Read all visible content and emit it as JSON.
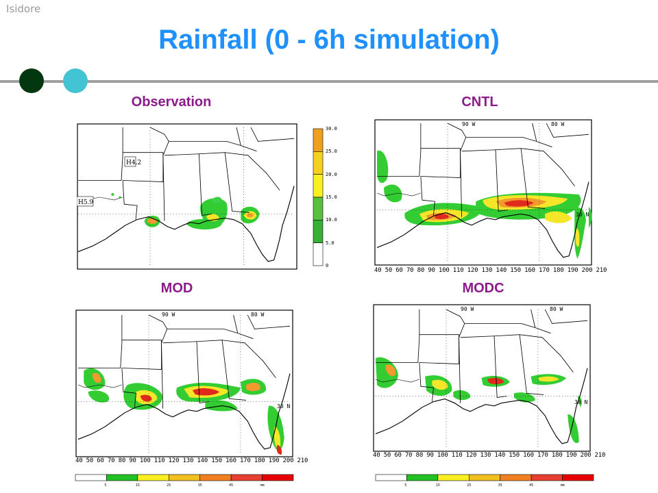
{
  "header": {
    "corner_label": "Isidore",
    "title": "Rainfall (0 - 6h simulation)"
  },
  "panels": {
    "observation": {
      "label": "Observation",
      "station_1": "H4.2",
      "station_2": "H5.9"
    },
    "cntl": {
      "label": "CNTL",
      "lon_label_1": "90 W",
      "lon_label_2": "80 W",
      "lat_label": "30 N"
    },
    "mod": {
      "label": "MOD",
      "lon_label_1": "90 W",
      "lon_label_2": "80 W",
      "lat_label": "30 N"
    },
    "modc": {
      "label": "MODC",
      "lon_label_1": "90 W",
      "lon_label_2": "80 W",
      "lat_label": "30 N"
    }
  },
  "grid_axis_ticks": "40 50 60 70 80 90 100 110 120 130 140 150 160 170 180 190 200 210",
  "observation_colorbar": {
    "labels": [
      "30.0",
      "25.0",
      "20.0",
      "15.0",
      "10.0",
      "5.0",
      "0"
    ],
    "colors": [
      "#f0a020",
      "#f5d020",
      "#f8f020",
      "#58c03c",
      "#38b038",
      "#ffffff"
    ]
  },
  "bottom_colorbar": {
    "labels": [
      "5",
      "15",
      "25",
      "35",
      "45",
      "mm"
    ],
    "colors": [
      "#ffffff",
      "#22c022",
      "#f8f020",
      "#f0c020",
      "#f08020",
      "#e84030",
      "#e80000"
    ]
  },
  "colors": {
    "title": "#1e90ff",
    "panel_label": "#8b1a8b",
    "rain_green": "#33cc33",
    "rain_yellow": "#f5e62a",
    "rain_orange": "#f29a2e",
    "rain_red": "#e02a1c"
  }
}
